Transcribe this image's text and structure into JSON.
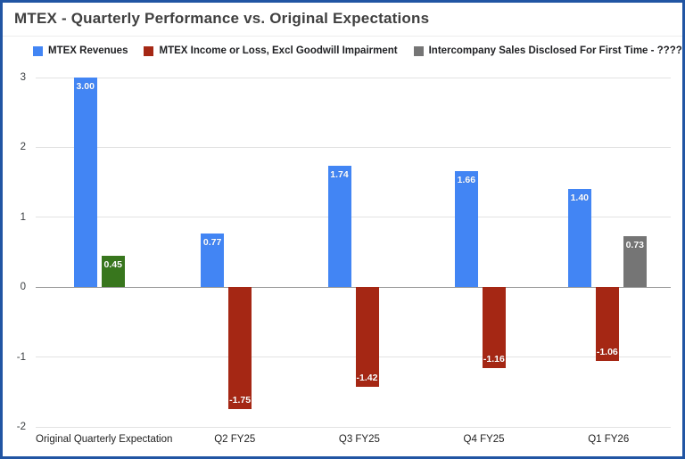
{
  "frame": {
    "border_color": "#2155a3",
    "background": "#ffffff"
  },
  "chart_data": {
    "type": "bar",
    "title": "MTEX - Quarterly Performance vs. Original Expectations",
    "title_color": "#404040",
    "categories": [
      "Original Quarterly Expectation",
      "Q2 FY25",
      "Q3 FY25",
      "Q4 FY25",
      "Q1 FY26"
    ],
    "series": [
      {
        "name": "MTEX Revenues",
        "color": "#4285f4",
        "values": [
          3.0,
          0.77,
          1.74,
          1.66,
          1.4
        ],
        "labels": [
          "3.00",
          "0.77",
          "1.74",
          "1.66",
          "1.40"
        ]
      },
      {
        "name": "MTEX Income or Loss, Excl Goodwill Impairment",
        "color": "#a52714",
        "values": [
          0.45,
          -1.75,
          -1.42,
          -1.16,
          -1.06
        ],
        "labels": [
          "0.45",
          "-1.75",
          "-1.42",
          "-1.16",
          "-1.06"
        ],
        "point_colors": [
          "#38761d",
          null,
          null,
          null,
          null
        ]
      },
      {
        "name": "Intercompany Sales Disclosed For First Time - ?????",
        "color": "#757575",
        "values": [
          null,
          null,
          null,
          null,
          0.73
        ],
        "labels": [
          null,
          null,
          null,
          null,
          "0.73"
        ]
      }
    ],
    "ylim": [
      -2,
      3
    ],
    "yticks": [
      3,
      2,
      1,
      0,
      -1,
      -2
    ],
    "grid": true,
    "legend_position": "top",
    "xlabel": "",
    "ylabel": "",
    "value_label_color": "#ffffff",
    "gridline_color": "#e3e3e3",
    "zero_line_color": "#999999",
    "axis_tick_color": "#3c4043",
    "category_label_color": "#1f1f1f"
  }
}
